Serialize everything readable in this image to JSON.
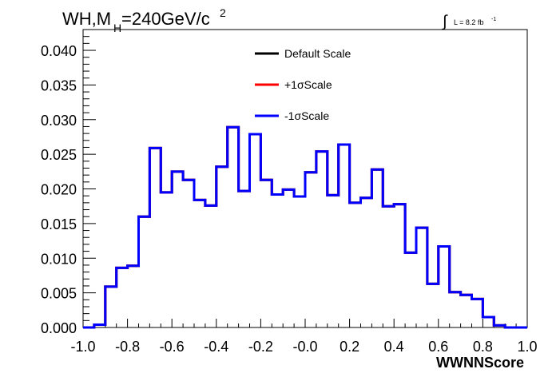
{
  "chart_data": {
    "type": "line",
    "title": {
      "base": "WH,M",
      "sub": "H",
      "rest": "=240GeV/c",
      "sup": "2"
    },
    "lumi": {
      "integral": "∫",
      "label": "L = 8.2 fb",
      "sup": "-1"
    },
    "xlabel": "WWNNScore",
    "ylabel": "",
    "xlim": [
      -1.0,
      1.0
    ],
    "ylim": [
      0.0,
      0.043
    ],
    "x_ticks": [
      -1.0,
      -0.8,
      -0.6,
      -0.4,
      -0.2,
      0.0,
      0.2,
      0.4,
      0.6,
      0.8,
      1.0
    ],
    "x_tick_labels": [
      "-1.0",
      "-0.8",
      "-0.6",
      "-0.4",
      "-0.2",
      "-0.0",
      "0.2",
      "0.4",
      "0.6",
      "0.8",
      "1.0"
    ],
    "y_ticks": [
      0.0,
      0.005,
      0.01,
      0.015,
      0.02,
      0.025,
      0.03,
      0.035,
      0.04
    ],
    "y_tick_labels": [
      "0.000",
      "0.005",
      "0.010",
      "0.015",
      "0.020",
      "0.025",
      "0.030",
      "0.035",
      "0.040"
    ],
    "bin_edges": [
      -1.0,
      -0.95,
      -0.9,
      -0.85,
      -0.8,
      -0.75,
      -0.7,
      -0.65,
      -0.6,
      -0.55,
      -0.5,
      -0.45,
      -0.4,
      -0.35,
      -0.3,
      -0.25,
      -0.2,
      -0.15,
      -0.1,
      -0.05,
      0.0,
      0.05,
      0.1,
      0.15,
      0.2,
      0.25,
      0.3,
      0.35,
      0.4,
      0.45,
      0.5,
      0.55,
      0.6,
      0.65,
      0.7,
      0.75,
      0.8,
      0.85,
      0.9,
      0.95,
      1.0
    ],
    "legend_position": "top-center",
    "series": [
      {
        "name": "Default Scale",
        "color": "#000000",
        "values": [
          0.0,
          0.0004,
          0.0059,
          0.0086,
          0.0089,
          0.016,
          0.0259,
          0.0195,
          0.0225,
          0.0213,
          0.0184,
          0.0176,
          0.0232,
          0.0289,
          0.0197,
          0.0279,
          0.0213,
          0.0192,
          0.0199,
          0.0189,
          0.0224,
          0.0254,
          0.0191,
          0.0264,
          0.018,
          0.0187,
          0.0228,
          0.0175,
          0.0178,
          0.0108,
          0.0144,
          0.0063,
          0.0117,
          0.0051,
          0.0047,
          0.0041,
          0.0015,
          0.0003,
          0.0,
          0.0
        ]
      },
      {
        "name": "+1σScale",
        "color": "#ff0000",
        "values": [
          0.0,
          0.0004,
          0.0059,
          0.0086,
          0.0089,
          0.016,
          0.0259,
          0.0195,
          0.0225,
          0.0213,
          0.0184,
          0.0176,
          0.0232,
          0.0289,
          0.0197,
          0.0279,
          0.0213,
          0.0192,
          0.0199,
          0.0189,
          0.0224,
          0.0254,
          0.0191,
          0.0264,
          0.018,
          0.0187,
          0.0228,
          0.0175,
          0.0178,
          0.0108,
          0.0144,
          0.0063,
          0.0117,
          0.0051,
          0.0047,
          0.0041,
          0.0015,
          0.0003,
          0.0,
          0.0
        ]
      },
      {
        "name": "-1σScale",
        "color": "#0000ff",
        "values": [
          0.0,
          0.0004,
          0.0059,
          0.0086,
          0.0089,
          0.016,
          0.0259,
          0.0195,
          0.0225,
          0.0213,
          0.0184,
          0.0176,
          0.0232,
          0.0289,
          0.0197,
          0.0279,
          0.0213,
          0.0192,
          0.0199,
          0.0189,
          0.0224,
          0.0254,
          0.0191,
          0.0264,
          0.018,
          0.0187,
          0.0228,
          0.0175,
          0.0178,
          0.0108,
          0.0144,
          0.0063,
          0.0117,
          0.0051,
          0.0047,
          0.0041,
          0.0015,
          0.0003,
          0.0,
          0.0
        ]
      }
    ]
  }
}
